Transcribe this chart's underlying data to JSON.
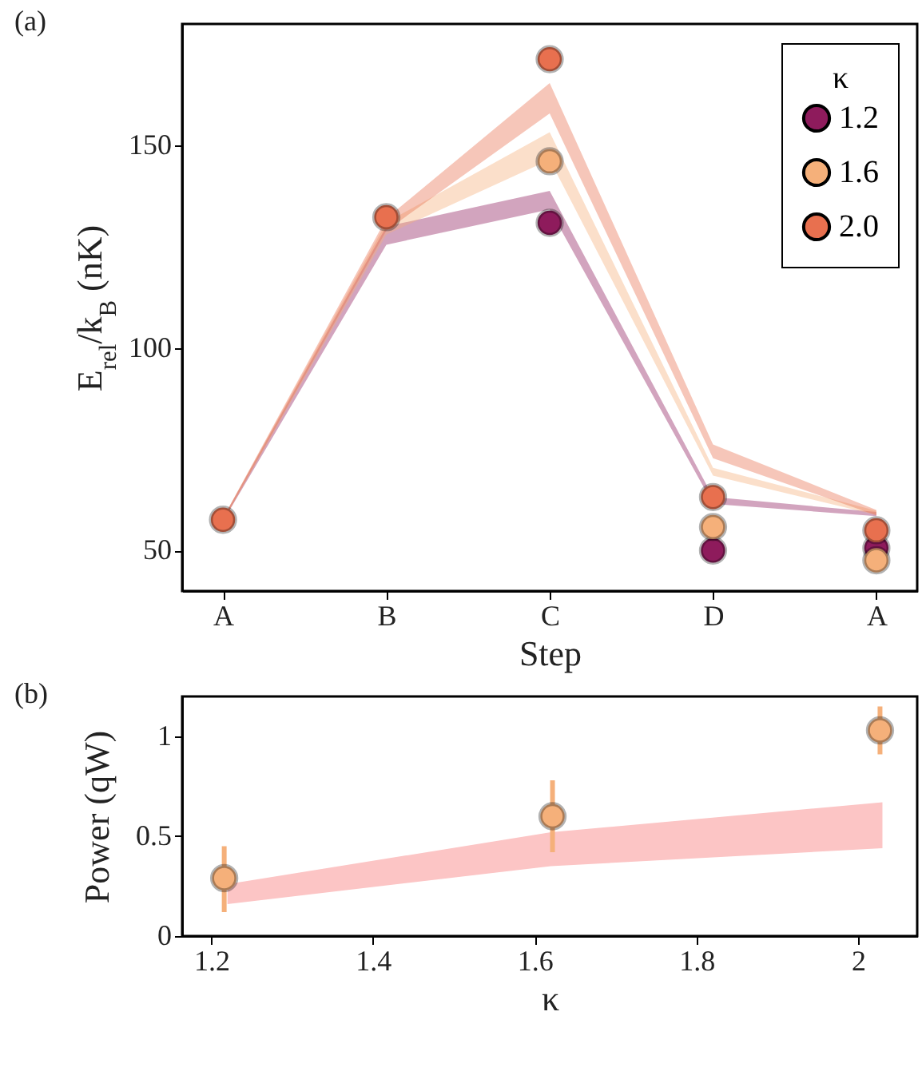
{
  "chart_data": [
    {
      "type": "scatter",
      "title": "(a)",
      "xlabel": "Step",
      "ylabel": "E$_{rel}$/k$_{B}$ (nK)",
      "legend_title": "κ",
      "legend": "top right",
      "marker": "circle",
      "categories": [
        "A",
        "B",
        "C",
        "D",
        "A"
      ],
      "ylim": [
        40,
        180
      ],
      "yticks": [
        50,
        100,
        150
      ],
      "series": [
        {
          "name": "1.2",
          "color": "#8e1b5c",
          "values": [
            null,
            null,
            130.9,
            50,
            50.6
          ],
          "lower": [
            57.2,
            125.5,
            134.2,
            61.5,
            58.5
          ],
          "upper": [
            58,
            130,
            138.8,
            63.2,
            59.5
          ]
        },
        {
          "name": "1.6",
          "color": "#f5b07a",
          "values": [
            null,
            null,
            146.1,
            55.8,
            47.6
          ],
          "lower": [
            57.2,
            128,
            146.5,
            68.5,
            58.8
          ],
          "upper": [
            58,
            131,
            153.3,
            70.4,
            59.8
          ]
        },
        {
          "name": "2.0",
          "color": "#e8704f",
          "values": [
            57.6,
            132.3,
            171.3,
            63.2,
            55
          ],
          "lower": [
            57.2,
            129,
            157.9,
            72.8,
            58.7
          ],
          "upper": [
            58,
            132,
            165.4,
            76.2,
            60
          ]
        }
      ]
    },
    {
      "type": "scatter",
      "title": "(b)",
      "xlabel": "κ",
      "ylabel": "Power (qW)",
      "marker": "circle",
      "xlim": [
        1.164,
        2.073
      ],
      "xticks": [
        1.2,
        1.4,
        1.6,
        1.8,
        2
      ],
      "ylim": [
        0,
        1.2
      ],
      "yticks": [
        0,
        0.5,
        1
      ],
      "series": [
        {
          "type": "area",
          "color": "#fcc5c5",
          "x": [
            1.22,
            1.62,
            2.03
          ],
          "values": [
            null,
            null,
            null
          ],
          "lower": [
            0.16,
            0.35,
            0.44
          ],
          "upper": [
            0.26,
            0.52,
            0.67
          ]
        },
        {
          "color": "#f5b07a",
          "x": [
            1.216,
            1.622,
            2.027
          ],
          "values": [
            0.29,
            0.6,
            1.03
          ],
          "errors": [
            [
              0.12,
              0.45
            ],
            [
              0.42,
              0.78
            ],
            [
              0.91,
              1.15
            ]
          ]
        }
      ]
    }
  ]
}
